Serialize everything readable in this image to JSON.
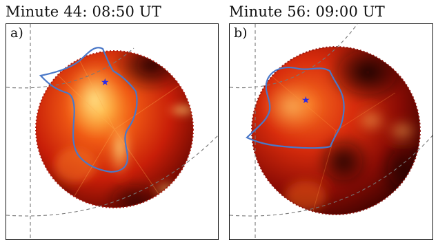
{
  "panels": [
    {
      "title": "Minute 44: 08:50 UT",
      "label": "a)",
      "marker_color": "#2a2ae8",
      "outline_color": "#4a78c8"
    },
    {
      "title": "Minute 56: 09:00 UT",
      "label": "b)",
      "marker_color": "#2a2ae8",
      "outline_color": "#4a78c8"
    }
  ],
  "colors": {
    "image_bright": "#ffe070",
    "image_mid": "#e8300c",
    "image_dark": "#2a0000",
    "grid_line": "#777777"
  },
  "icons": {
    "marker": "star-icon"
  }
}
